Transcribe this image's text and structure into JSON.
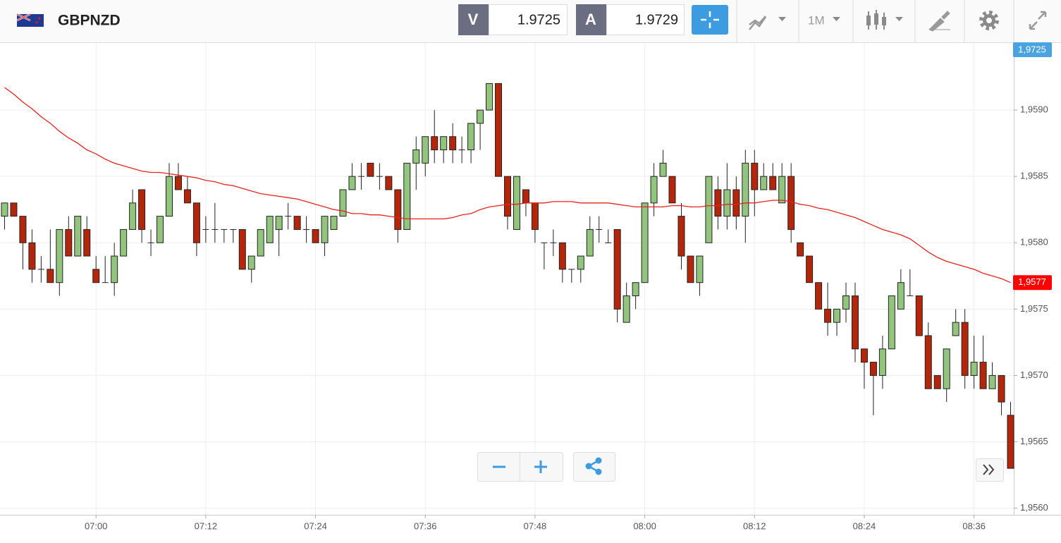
{
  "header": {
    "symbol": "GBPNZD",
    "bid_label": "V",
    "bid": 1.9725,
    "ask_label": "A",
    "ask": 1.9729,
    "timeframe": "1M"
  },
  "chart_data": {
    "type": "candlestick",
    "categories": [
      null,
      null,
      null,
      null,
      null,
      null,
      null,
      null,
      null,
      null,
      "07:00",
      null,
      null,
      null,
      null,
      null,
      null,
      null,
      null,
      null,
      null,
      null,
      "07:12",
      null,
      null,
      null,
      null,
      null,
      null,
      null,
      null,
      null,
      null,
      null,
      "07:24",
      null,
      null,
      null,
      null,
      null,
      null,
      null,
      null,
      null,
      null,
      null,
      "07:36",
      null,
      null,
      null,
      null,
      null,
      null,
      null,
      null,
      null,
      null,
      null,
      "07:48",
      null,
      null,
      null,
      null,
      null,
      null,
      null,
      null,
      null,
      null,
      null,
      "08:00",
      null,
      null,
      null,
      null,
      null,
      null,
      null,
      null,
      null,
      null,
      null,
      "08:12",
      null,
      null,
      null,
      null,
      null,
      null,
      null,
      null,
      null,
      null,
      null,
      "08:24",
      null,
      null,
      null,
      null,
      null,
      null,
      null,
      null,
      null,
      null,
      null,
      "08:36",
      null,
      null,
      null,
      null
    ],
    "open": [
      1.9582,
      1.9583,
      1.9582,
      1.958,
      1.9578,
      1.9578,
      1.9577,
      1.9581,
      1.9579,
      1.9581,
      1.9578,
      1.9577,
      1.9577,
      1.9579,
      1.9581,
      1.9584,
      1.958,
      1.958,
      1.9582,
      1.9585,
      1.9584,
      1.9583,
      1.9581,
      1.9581,
      1.9581,
      1.9581,
      1.9581,
      1.9578,
      1.9579,
      1.958,
      1.9581,
      1.9582,
      1.9582,
      1.9581,
      1.9581,
      1.958,
      1.9581,
      1.9582,
      1.9584,
      1.9585,
      1.9586,
      1.9585,
      1.9585,
      1.9584,
      1.9581,
      1.9586,
      1.9586,
      1.9588,
      1.9587,
      1.9588,
      1.9587,
      1.9587,
      1.9589,
      1.959,
      1.9592,
      1.9585,
      1.9581,
      1.9584,
      1.9583,
      1.958,
      1.958,
      1.958,
      1.9578,
      1.9578,
      1.9579,
      1.9581,
      1.958,
      1.9581,
      1.9574,
      1.9576,
      1.9577,
      1.9583,
      1.9585,
      1.9585,
      1.9582,
      1.9579,
      1.9577,
      1.958,
      1.9584,
      1.9582,
      1.9584,
      1.9582,
      1.9586,
      1.9584,
      1.9585,
      1.9583,
      1.9585,
      1.958,
      1.9579,
      1.9577,
      1.9575,
      1.9574,
      1.9575,
      1.9576,
      1.9572,
      1.9571,
      1.957,
      1.9572,
      1.9575,
      1.9576,
      1.9576,
      1.9573,
      1.957,
      1.9569,
      1.9573,
      1.9574,
      1.957,
      1.9571,
      1.9569,
      1.957,
      1.9567
    ],
    "high": [
      1.9583,
      1.9583,
      1.9582,
      1.9581,
      1.9579,
      1.9581,
      1.9581,
      1.9582,
      1.9582,
      1.9582,
      1.9579,
      1.9579,
      1.958,
      1.9581,
      1.9584,
      1.9584,
      1.9581,
      1.9582,
      1.9586,
      1.9586,
      1.9585,
      1.9583,
      1.9582,
      1.9583,
      1.9581,
      1.9581,
      1.9581,
      1.9579,
      1.9581,
      1.9582,
      1.9582,
      1.9583,
      1.9582,
      1.9582,
      1.9581,
      1.9582,
      1.9582,
      1.9584,
      1.9586,
      1.9586,
      1.9586,
      1.9586,
      1.9585,
      1.9584,
      1.9586,
      1.9588,
      1.9588,
      1.959,
      1.9588,
      1.9589,
      1.9588,
      1.9589,
      1.959,
      1.9592,
      1.9592,
      1.9585,
      1.9585,
      1.9584,
      1.9583,
      1.958,
      1.9581,
      1.958,
      1.9578,
      1.9579,
      1.9582,
      1.9582,
      1.9581,
      1.9581,
      1.9577,
      1.9577,
      1.9583,
      1.9586,
      1.9587,
      1.9585,
      1.9583,
      1.9579,
      1.9579,
      1.9585,
      1.9585,
      1.9586,
      1.9585,
      1.9587,
      1.9587,
      1.9586,
      1.9586,
      1.9586,
      1.9586,
      1.958,
      1.9579,
      1.9577,
      1.9577,
      1.9575,
      1.9577,
      1.9577,
      1.9572,
      1.9571,
      1.9573,
      1.9576,
      1.9578,
      1.9578,
      1.9576,
      1.9574,
      1.957,
      1.9572,
      1.9575,
      1.9575,
      1.9573,
      1.9573,
      1.9571,
      1.957,
      1.9568
    ],
    "low": [
      1.9581,
      1.9582,
      1.9578,
      1.9577,
      1.9577,
      1.9577,
      1.9576,
      1.9579,
      1.9579,
      1.9579,
      1.9577,
      1.9577,
      1.9576,
      1.9579,
      1.9581,
      1.958,
      1.9579,
      1.958,
      1.9582,
      1.9584,
      1.9583,
      1.9579,
      1.958,
      1.958,
      1.958,
      1.958,
      1.9578,
      1.9577,
      1.9579,
      1.958,
      1.9579,
      1.9581,
      1.9581,
      1.958,
      1.958,
      1.9579,
      1.9581,
      1.9582,
      1.9584,
      1.9584,
      1.9585,
      1.9584,
      1.9584,
      1.958,
      1.9581,
      1.9584,
      1.9585,
      1.9586,
      1.9586,
      1.9586,
      1.9586,
      1.9586,
      1.9587,
      1.959,
      1.9585,
      1.9581,
      1.9581,
      1.9582,
      1.958,
      1.9578,
      1.9579,
      1.9577,
      1.9577,
      1.9577,
      1.9579,
      1.958,
      1.958,
      1.9574,
      1.9574,
      1.9575,
      1.9577,
      1.9582,
      1.9585,
      1.9583,
      1.9578,
      1.9577,
      1.9576,
      1.958,
      1.9581,
      1.9581,
      1.9581,
      1.958,
      1.9582,
      1.9584,
      1.9584,
      1.9583,
      1.958,
      1.9579,
      1.9577,
      1.9575,
      1.9573,
      1.9573,
      1.9574,
      1.9571,
      1.9569,
      1.9567,
      1.9569,
      1.9572,
      1.9575,
      1.9576,
      1.9573,
      1.9569,
      1.9569,
      1.9568,
      1.9573,
      1.9569,
      1.9569,
      1.9569,
      1.9569,
      1.9567,
      1.9563
    ],
    "close": [
      1.9583,
      1.9582,
      1.958,
      1.9578,
      1.9578,
      1.9577,
      1.9581,
      1.9579,
      1.9582,
      1.9579,
      1.9577,
      1.9577,
      1.9579,
      1.9581,
      1.9583,
      1.9581,
      1.958,
      1.9582,
      1.9585,
      1.9584,
      1.9583,
      1.958,
      1.9581,
      1.9581,
      1.9581,
      1.9581,
      1.9578,
      1.9579,
      1.9581,
      1.9582,
      1.9582,
      1.9582,
      1.9581,
      1.9581,
      1.958,
      1.9582,
      1.9582,
      1.9584,
      1.9585,
      1.9585,
      1.9585,
      1.9585,
      1.9584,
      1.9581,
      1.9586,
      1.9587,
      1.9588,
      1.9587,
      1.9588,
      1.9587,
      1.9587,
      1.9589,
      1.959,
      1.9592,
      1.9585,
      1.9582,
      1.9585,
      1.9583,
      1.9581,
      1.958,
      1.958,
      1.9578,
      1.9578,
      1.9579,
      1.9581,
      1.9581,
      1.958,
      1.9575,
      1.9576,
      1.9577,
      1.9583,
      1.9585,
      1.9586,
      1.9583,
      1.9579,
      1.9577,
      1.9579,
      1.9585,
      1.9582,
      1.9584,
      1.9582,
      1.9586,
      1.9584,
      1.9585,
      1.9584,
      1.9585,
      1.9581,
      1.9579,
      1.9577,
      1.9575,
      1.9574,
      1.9575,
      1.9576,
      1.9572,
      1.9571,
      1.957,
      1.9572,
      1.9576,
      1.9577,
      1.9576,
      1.9573,
      1.9569,
      1.9569,
      1.9572,
      1.9574,
      1.957,
      1.9571,
      1.9569,
      1.957,
      1.9568,
      1.9563
    ],
    "up_color": "#93c47d",
    "down_color": "#b3260c",
    "moving_average": {
      "color": "#e8231b",
      "values": [
        1.95917,
        1.95912,
        1.95906,
        1.95901,
        1.95895,
        1.9589,
        1.95884,
        1.95879,
        1.95875,
        1.9587,
        1.95867,
        1.95863,
        1.9586,
        1.95858,
        1.95856,
        1.95854,
        1.95853,
        1.95853,
        1.95852,
        1.95851,
        1.9585,
        1.95849,
        1.95847,
        1.95846,
        1.95844,
        1.95843,
        1.95841,
        1.95839,
        1.95837,
        1.95836,
        1.95835,
        1.95834,
        1.95833,
        1.95831,
        1.95829,
        1.95827,
        1.95825,
        1.95824,
        1.95822,
        1.95822,
        1.95821,
        1.95821,
        1.9582,
        1.95819,
        1.95818,
        1.95818,
        1.95818,
        1.95818,
        1.95818,
        1.95819,
        1.95821,
        1.95822,
        1.95825,
        1.95827,
        1.95828,
        1.95829,
        1.95829,
        1.9583,
        1.9583,
        1.9583,
        1.95831,
        1.95831,
        1.95831,
        1.9583,
        1.9583,
        1.9583,
        1.9583,
        1.95829,
        1.95828,
        1.95827,
        1.95827,
        1.95827,
        1.95827,
        1.95828,
        1.95828,
        1.95827,
        1.95827,
        1.95828,
        1.95828,
        1.95829,
        1.95829,
        1.9583,
        1.9583,
        1.95831,
        1.95832,
        1.95832,
        1.95831,
        1.95829,
        1.95828,
        1.95826,
        1.95825,
        1.95823,
        1.95821,
        1.95819,
        1.95816,
        1.95813,
        1.9581,
        1.95808,
        1.95806,
        1.95803,
        1.95798,
        1.95793,
        1.95789,
        1.95786,
        1.95784,
        1.95782,
        1.9578,
        1.95777,
        1.95775,
        1.95773,
        1.9577
      ]
    },
    "price_tags": [
      {
        "label": "1,9725",
        "color": "#4aa3df"
      },
      {
        "label": "1,9577",
        "color": "#ff0000"
      }
    ],
    "ylim": [
      1.95595,
      1.9595
    ],
    "yticks": [
      {
        "value": 1.956,
        "label": "1,9560"
      },
      {
        "value": 1.9565,
        "label": "1,9565"
      },
      {
        "value": 1.957,
        "label": "1,9570"
      },
      {
        "value": 1.9575,
        "label": "1,9575"
      },
      {
        "value": 1.958,
        "label": "1,9580"
      },
      {
        "value": 1.9585,
        "label": "1,9585"
      },
      {
        "value": 1.959,
        "label": "1,9590"
      }
    ],
    "grid": true
  }
}
